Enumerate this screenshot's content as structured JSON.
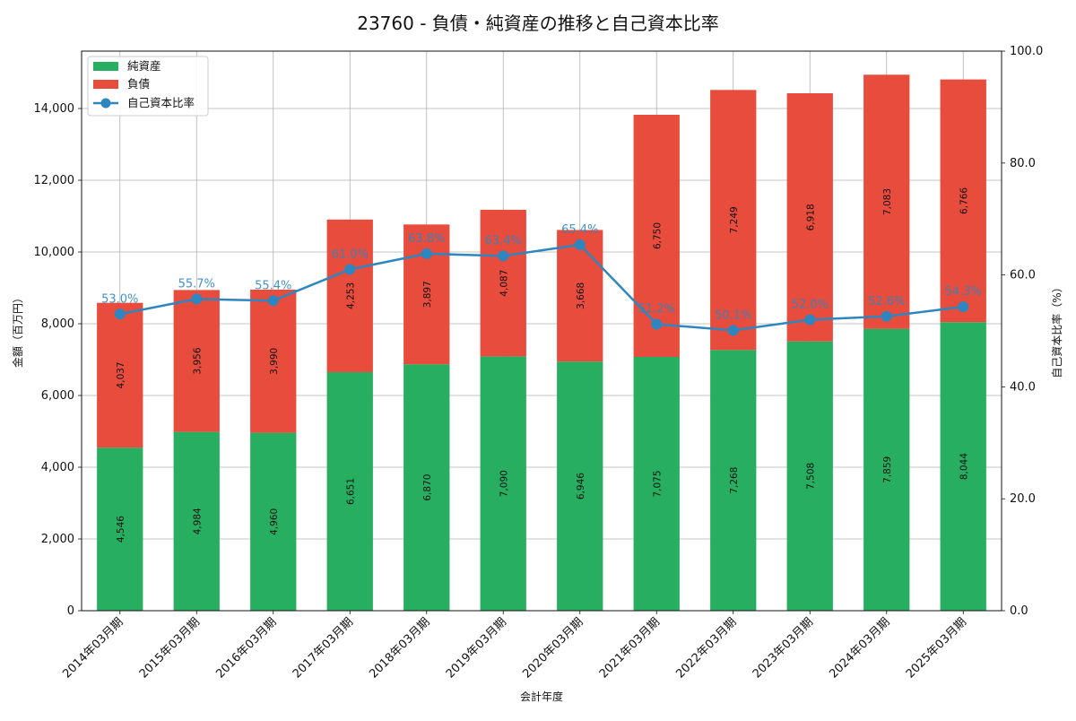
{
  "chart_data": {
    "type": "bar",
    "title": "23760 - 負債・純資産の推移と自己資本比率",
    "xlabel": "会計年度",
    "ylabel": "金額（百万円）",
    "y2label": "自己資本比率（%）",
    "ylim": [
      0,
      15600
    ],
    "y2lim": [
      0,
      100
    ],
    "yticks": [
      0,
      2000,
      4000,
      6000,
      8000,
      10000,
      12000,
      14000
    ],
    "ytick_labels": [
      "0",
      "2,000",
      "4,000",
      "6,000",
      "8,000",
      "10,000",
      "12,000",
      "14,000"
    ],
    "y2ticks": [
      0,
      20,
      40,
      60,
      80,
      100
    ],
    "y2tick_labels": [
      "0.0",
      "20.0",
      "40.0",
      "60.0",
      "80.0",
      "100.0"
    ],
    "grid": true,
    "legend_position": "top-left",
    "categories": [
      "2014年03月期",
      "2015年03月期",
      "2016年03月期",
      "2017年03月期",
      "2018年03月期",
      "2019年03月期",
      "2020年03月期",
      "2021年03月期",
      "2022年03月期",
      "2023年03月期",
      "2024年03月期",
      "2025年03月期"
    ],
    "series": [
      {
        "name": "純資産",
        "kind": "bar",
        "color": "#27ae60",
        "values": [
          4546,
          4984,
          4960,
          6651,
          6870,
          7090,
          6946,
          7075,
          7268,
          7508,
          7859,
          8044
        ],
        "labels": [
          "4,546",
          "4,984",
          "4,960",
          "6,651",
          "6,870",
          "7,090",
          "6,946",
          "7,075",
          "7,268",
          "7,508",
          "7,859",
          "8,044"
        ]
      },
      {
        "name": "負債",
        "kind": "bar",
        "color": "#e74c3c",
        "values": [
          4037,
          3956,
          3990,
          4253,
          3897,
          4087,
          3668,
          6750,
          7249,
          6918,
          7083,
          6766
        ],
        "labels": [
          "4,037",
          "3,956",
          "3,990",
          "4,253",
          "3,897",
          "4,087",
          "3,668",
          "6,750",
          "7,249",
          "6,918",
          "7,083",
          "6,766"
        ]
      },
      {
        "name": "自己資本比率",
        "kind": "line",
        "axis": "right",
        "color": "#2e86c1",
        "values": [
          53.0,
          55.7,
          55.4,
          61.0,
          63.8,
          63.4,
          65.4,
          51.2,
          50.1,
          52.0,
          52.6,
          54.3
        ],
        "labels": [
          "53.0%",
          "55.7%",
          "55.4%",
          "61.0%",
          "63.8%",
          "63.4%",
          "65.4%",
          "51.2%",
          "50.1%",
          "52.0%",
          "52.6%",
          "54.3%"
        ]
      }
    ]
  }
}
